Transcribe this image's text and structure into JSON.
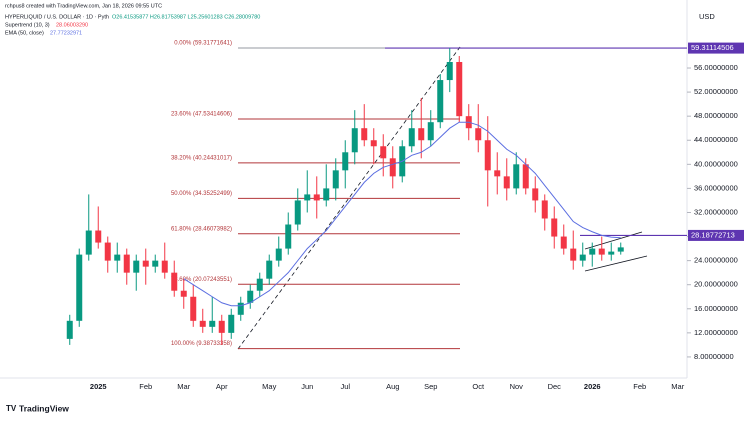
{
  "header": {
    "credit": "rchpus8 created with TradingView.com, Jan 18, 2026 09:55 UTC",
    "symbol": "HYPERLIQUID / U.S. DOLLAR · 1D · Pyth",
    "ohlc": "O26.41535877 H26.81753987 L25.25601283 C26.28009780",
    "supertrend": "Supertrend (10, 3)",
    "supertrend_value": "28.06003290",
    "ema": "EMA (50, close)",
    "ema_value": "27.77232971",
    "currency": "USD",
    "brand": "TradingView"
  },
  "chart_data": {
    "type": "candlestick",
    "categories": [
      null,
      null,
      null,
      "2025",
      null,
      null,
      null,
      null,
      "Feb",
      null,
      null,
      null,
      "Mar",
      null,
      null,
      null,
      "Apr",
      null,
      null,
      null,
      null,
      "May",
      null,
      null,
      null,
      "Jun",
      null,
      null,
      null,
      "Jul",
      null,
      null,
      null,
      null,
      "Aug",
      null,
      null,
      null,
      "Sep",
      null,
      null,
      null,
      null,
      "Oct",
      null,
      null,
      null,
      "Nov",
      null,
      null,
      null,
      "Dec",
      null,
      null,
      null,
      "2026",
      null,
      null,
      null,
      null,
      "Feb",
      null,
      null,
      null,
      "Mar"
    ],
    "values": [
      [
        11,
        15,
        10,
        14
      ],
      [
        14,
        26,
        13,
        25
      ],
      [
        25,
        35,
        24,
        29
      ],
      [
        29,
        33,
        26,
        27
      ],
      [
        27,
        28,
        22,
        24
      ],
      [
        24,
        27,
        22,
        25
      ],
      [
        25,
        26,
        20,
        22
      ],
      [
        22,
        25,
        19,
        24
      ],
      [
        24,
        26,
        20,
        23
      ],
      [
        23,
        25,
        22,
        24
      ],
      [
        24,
        27,
        21,
        22
      ],
      [
        22,
        24,
        18,
        19
      ],
      [
        19,
        21,
        16,
        18
      ],
      [
        18,
        20,
        13,
        14
      ],
      [
        14,
        16,
        12,
        13
      ],
      [
        13,
        18,
        12,
        14
      ],
      [
        14,
        15,
        10,
        12
      ],
      [
        12,
        16,
        11,
        15
      ],
      [
        15,
        18,
        14,
        17
      ],
      [
        17,
        20,
        16,
        19
      ],
      [
        19,
        22,
        18,
        21
      ],
      [
        21,
        25,
        20,
        24
      ],
      [
        24,
        28,
        23,
        26
      ],
      [
        26,
        32,
        25,
        30
      ],
      [
        30,
        36,
        29,
        34
      ],
      [
        34,
        39,
        32,
        35
      ],
      [
        35,
        38,
        31,
        34
      ],
      [
        34,
        40,
        33,
        36
      ],
      [
        36,
        41,
        34,
        39
      ],
      [
        39,
        44,
        36,
        42
      ],
      [
        42,
        49,
        40,
        46
      ],
      [
        46,
        50,
        43,
        44
      ],
      [
        44,
        46,
        40,
        43
      ],
      [
        43,
        45,
        38,
        41
      ],
      [
        41,
        43,
        36,
        38
      ],
      [
        38,
        44,
        37,
        43
      ],
      [
        43,
        49,
        42,
        46
      ],
      [
        46,
        51,
        41,
        44
      ],
      [
        44,
        49,
        43,
        47
      ],
      [
        47,
        55,
        46,
        54
      ],
      [
        54,
        59.3,
        52,
        57
      ],
      [
        57,
        58,
        47,
        48
      ],
      [
        48,
        50,
        44,
        46
      ],
      [
        46,
        50,
        42,
        44
      ],
      [
        44,
        48,
        33,
        39
      ],
      [
        39,
        42,
        35,
        38
      ],
      [
        38,
        41,
        34,
        36
      ],
      [
        36,
        42,
        35,
        40
      ],
      [
        40,
        41,
        35,
        36
      ],
      [
        36,
        38,
        32,
        34
      ],
      [
        34,
        35,
        29,
        31
      ],
      [
        31,
        33,
        26,
        28
      ],
      [
        28,
        30,
        25,
        26
      ],
      [
        26,
        29,
        22.5,
        24
      ],
      [
        24,
        27,
        23,
        25
      ],
      [
        25,
        27,
        23,
        26
      ],
      [
        26,
        28,
        24,
        25
      ],
      [
        25,
        27,
        24,
        25.5
      ],
      [
        25.5,
        27,
        25,
        26.2
      ],
      null,
      null,
      null,
      null,
      null,
      null
    ],
    "up_color": "#089981",
    "down_color": "#f23645",
    "ema_color": "#5b6ee1",
    "ema_values": [
      null,
      null,
      null,
      null,
      null,
      null,
      null,
      null,
      null,
      null,
      null,
      null,
      21,
      20,
      19,
      18,
      17,
      16.5,
      16.5,
      17,
      18,
      19,
      20.5,
      22,
      24,
      26,
      27.5,
      29,
      31,
      33,
      35,
      37,
      38.5,
      39.5,
      40,
      40.5,
      41.5,
      42,
      43,
      44.5,
      46,
      47,
      47,
      46.5,
      45.5,
      44,
      42.5,
      41.5,
      40,
      38.5,
      36.5,
      34.5,
      32.5,
      30.5,
      29.5,
      28.8,
      28.2,
      27.9,
      27.8,
      null,
      null,
      null,
      null,
      null,
      null
    ],
    "fib_levels": [
      {
        "value": 59.31771641,
        "label": "0.00% (59.31771641)"
      },
      {
        "value": 47.53414606,
        "label": "23.60% (47.53414606)"
      },
      {
        "value": 40.24431017,
        "label": "38.20% (40.24431017)"
      },
      {
        "value": 34.35252499,
        "label": "50.00% (34.35252499)"
      },
      {
        "value": 28.46073982,
        "label": "61.80% (28.46073982)"
      },
      {
        "value": 20.07243551,
        "label": "78.60% (20.07243551)"
      },
      {
        "value": 9.38733358,
        "label": "100.00% (9.38733358)"
      }
    ],
    "fib_color": "#b2363a",
    "price_lines": [
      59.31114506,
      28.18772713
    ],
    "price_line_color": "#5e35b1",
    "ylim": [
      4.5,
      67.3
    ],
    "yticks": [
      {
        "value": 8,
        "label": "8.00000000"
      },
      {
        "value": 12,
        "label": "12.00000000"
      },
      {
        "value": 16,
        "label": "16.00000000"
      },
      {
        "value": 20,
        "label": "20.00000000"
      },
      {
        "value": 24,
        "label": "24.00000000"
      },
      {
        "value": 28,
        "label": "28.00000000"
      },
      {
        "value": 32,
        "label": "32.00000000"
      },
      {
        "value": 36,
        "label": "36.00000000"
      },
      {
        "value": 40,
        "label": "40.00000000"
      },
      {
        "value": 44,
        "label": "44.00000000"
      },
      {
        "value": 48,
        "label": "48.00000000"
      },
      {
        "value": 52,
        "label": "52.00000000"
      },
      {
        "value": 56,
        "label": "56.00000000"
      }
    ]
  }
}
